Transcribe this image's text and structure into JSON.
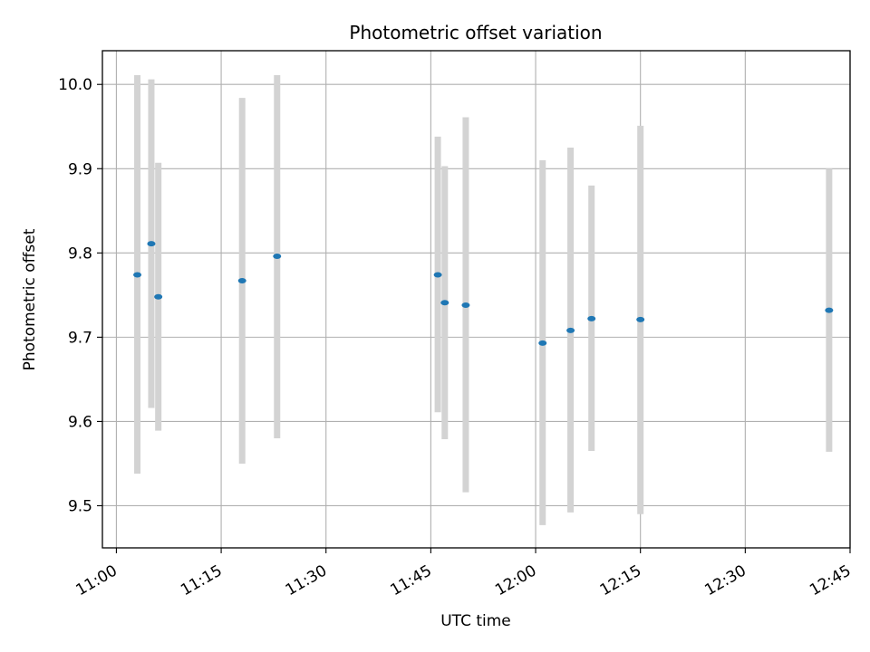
{
  "chart_data": {
    "type": "scatter",
    "title": "Photometric offset variation",
    "xlabel": "UTC time",
    "ylabel": "Photometric offset",
    "x_tick_labels": [
      "11:00",
      "11:15",
      "11:30",
      "11:45",
      "12:00",
      "12:15",
      "12:30",
      "12:45"
    ],
    "x_tick_values": [
      "11:00",
      "11:15",
      "11:30",
      "11:45",
      "12:00",
      "12:15",
      "12:30",
      "12:45"
    ],
    "y_tick_labels": [
      "9.5",
      "9.6",
      "9.7",
      "9.8",
      "9.9",
      "10.0"
    ],
    "y_tick_values": [
      9.5,
      9.6,
      9.7,
      9.8,
      9.9,
      10.0
    ],
    "xlim": [
      "10:58",
      "12:45"
    ],
    "ylim": [
      9.45,
      10.04
    ],
    "grid": true,
    "points": [
      {
        "time": "11:03",
        "value": 9.774,
        "low": 9.538,
        "high": 10.011
      },
      {
        "time": "11:05",
        "value": 9.811,
        "low": 9.616,
        "high": 10.006
      },
      {
        "time": "11:06",
        "value": 9.748,
        "low": 9.589,
        "high": 9.907
      },
      {
        "time": "11:18",
        "value": 9.767,
        "low": 9.55,
        "high": 9.984
      },
      {
        "time": "11:23",
        "value": 9.796,
        "low": 9.58,
        "high": 10.011
      },
      {
        "time": "11:46",
        "value": 9.774,
        "low": 9.611,
        "high": 9.938
      },
      {
        "time": "11:47",
        "value": 9.741,
        "low": 9.579,
        "high": 9.903
      },
      {
        "time": "11:50",
        "value": 9.738,
        "low": 9.516,
        "high": 9.961
      },
      {
        "time": "12:01",
        "value": 9.693,
        "low": 9.477,
        "high": 9.91
      },
      {
        "time": "12:05",
        "value": 9.708,
        "low": 9.492,
        "high": 9.925
      },
      {
        "time": "12:08",
        "value": 9.722,
        "low": 9.565,
        "high": 9.88
      },
      {
        "time": "12:15",
        "value": 9.721,
        "low": 9.49,
        "high": 9.951
      },
      {
        "time": "12:42",
        "value": 9.732,
        "low": 9.564,
        "high": 9.9
      }
    ],
    "marker_color": "#1f77b4",
    "errorbar_color": "#d3d3d3",
    "grid_color": "#b0b0b0"
  }
}
